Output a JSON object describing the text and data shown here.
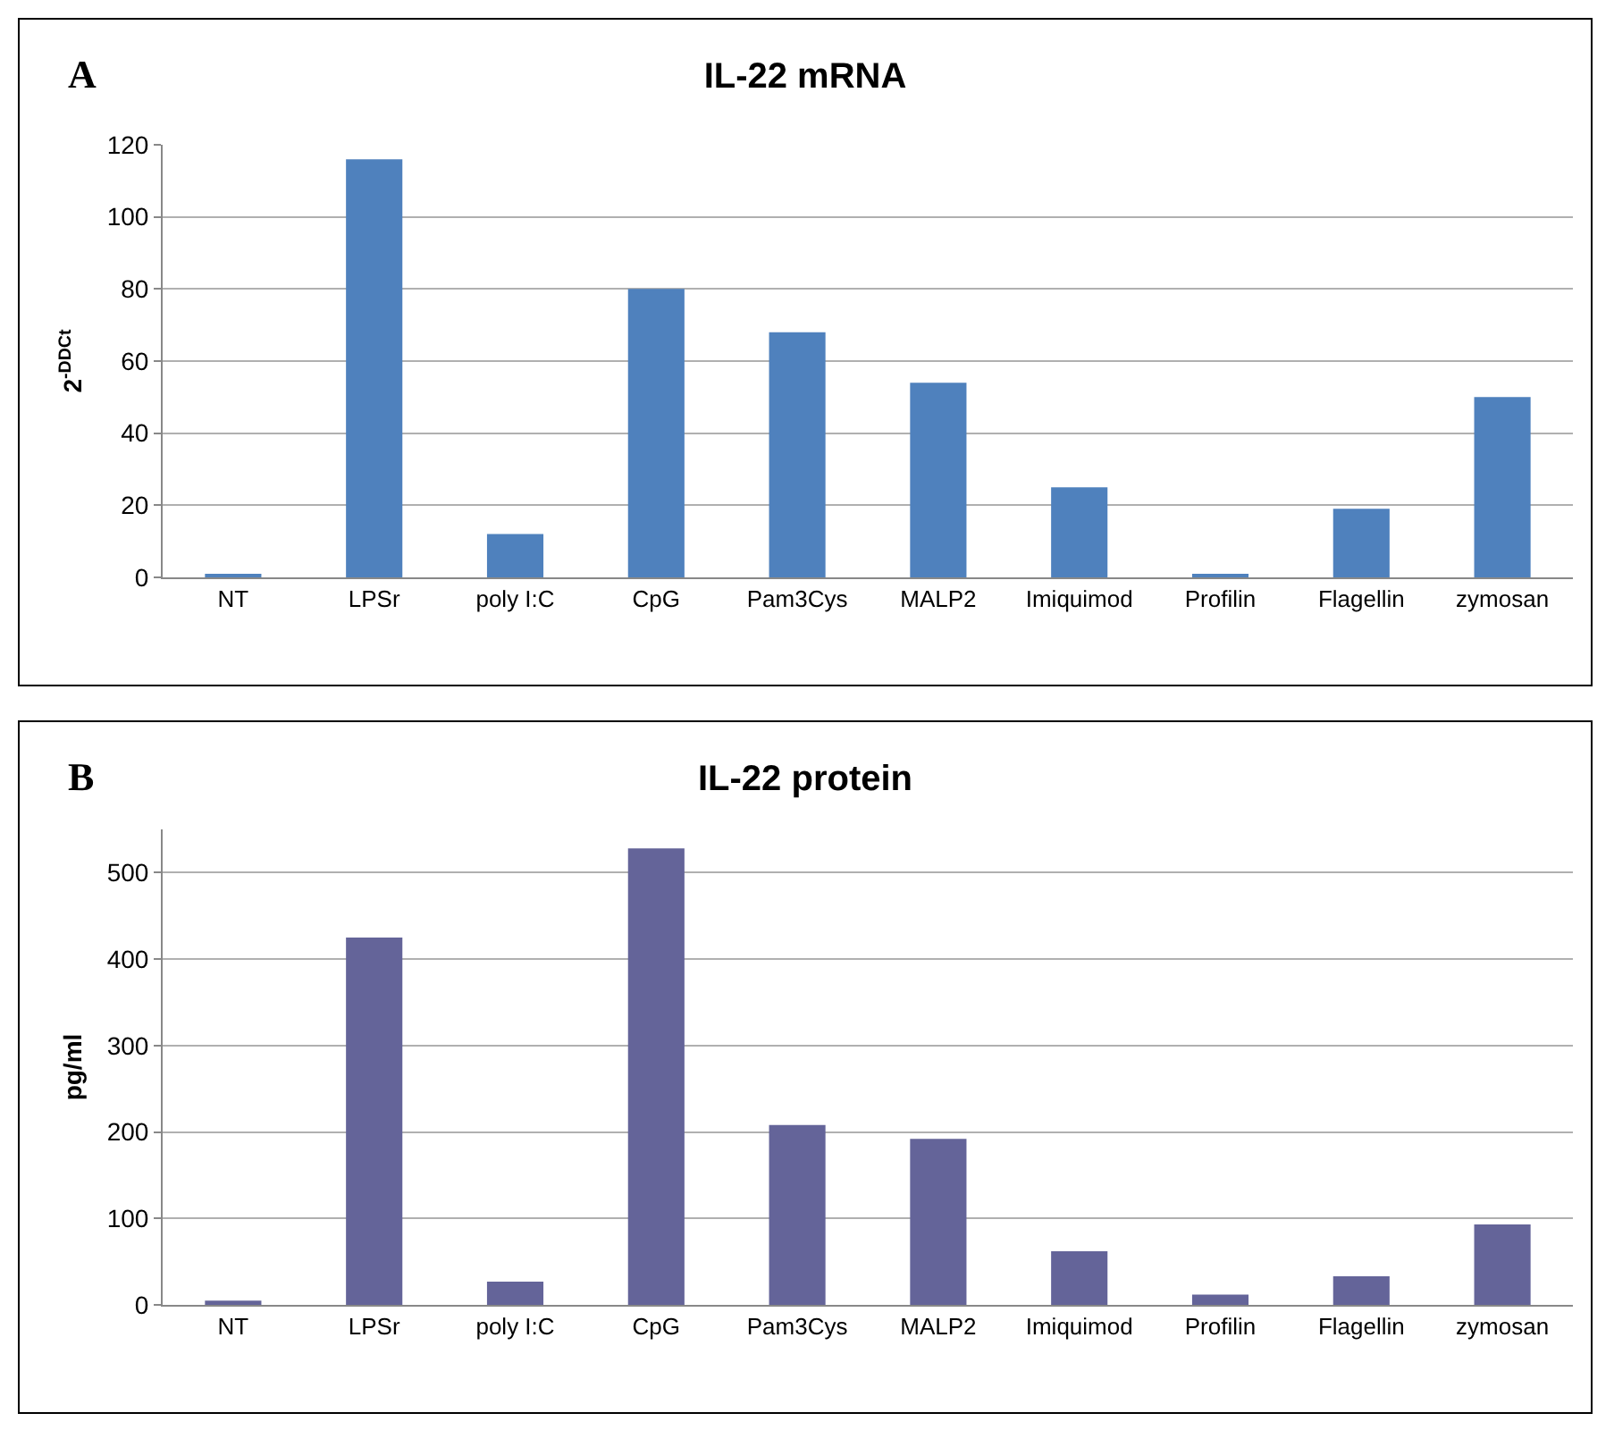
{
  "chart_data": [
    {
      "type": "bar",
      "title": "IL-22 mRNA",
      "ylabel": "2$^{-DDCt}$",
      "annotations": [
        "A"
      ],
      "categories": [
        "NT",
        "LPSr",
        "poly I:C",
        "CpG",
        "Pam3Cys",
        "MALP2",
        "Imiquimod",
        "Profilin",
        "Flagellin",
        "zymosan"
      ],
      "series": [
        {
          "color": "#4f81bd",
          "values": [
            1,
            116,
            12,
            80,
            68,
            54,
            25,
            1,
            19,
            50
          ]
        }
      ],
      "ylim": [
        0,
        120
      ],
      "yticks": [
        0,
        20,
        40,
        60,
        80,
        100,
        120
      ],
      "grid": "y",
      "legend": false
    },
    {
      "type": "bar",
      "title": "IL-22 protein",
      "ylabel": "pg/ml",
      "annotations": [
        "B"
      ],
      "categories": [
        "NT",
        "LPSr",
        "poly I:C",
        "CpG",
        "Pam3Cys",
        "MALP2",
        "Imiquimod",
        "Profilin",
        "Flagellin",
        "zymosan"
      ],
      "series": [
        {
          "color": "#646499",
          "values": [
            5,
            425,
            27,
            528,
            208,
            192,
            62,
            12,
            33,
            93
          ]
        }
      ],
      "ylim": [
        0,
        550
      ],
      "yticks": [
        0,
        100,
        200,
        300,
        400,
        500
      ],
      "grid": "y",
      "legend": false
    }
  ]
}
